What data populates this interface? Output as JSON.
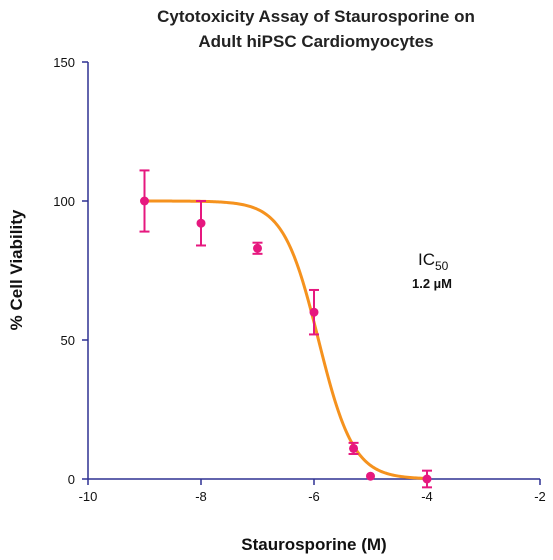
{
  "chart_data": {
    "type": "scatter",
    "title_lines": [
      "Cytotoxicity Assay of Staurosporine on",
      "Adult hiPSC Cardiomyocytes"
    ],
    "xlabel": "Staurosporine (M)",
    "ylabel": "% Cell Viability",
    "xlim": [
      -10,
      -2
    ],
    "ylim": [
      0,
      150
    ],
    "xticks": [
      -10,
      -8,
      -6,
      -4,
      -2
    ],
    "yticks": [
      0,
      50,
      100,
      150
    ],
    "grid": false,
    "annotation": {
      "ic50_main": "IC",
      "ic50_sub": "50",
      "ic50_value": "1.2 µM"
    },
    "series": [
      {
        "kind": "points",
        "color": "#e6187f",
        "x": [
          -9,
          -8,
          -7,
          -6,
          -5.3,
          -5,
          -4
        ],
        "y": [
          100,
          92,
          83,
          60,
          11,
          1,
          0
        ],
        "err": [
          11,
          8,
          2,
          8,
          2,
          0,
          3
        ]
      },
      {
        "kind": "fit",
        "color": "#f5921e",
        "model": "4PL",
        "top": 100,
        "bottom": 0,
        "log_ic50": -5.92,
        "hill": 1.4
      }
    ]
  }
}
